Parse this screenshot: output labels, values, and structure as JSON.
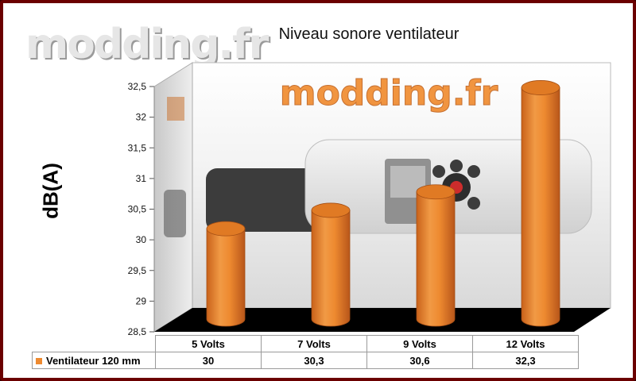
{
  "watermark": "modding.fr",
  "chart_data": {
    "type": "bar",
    "title": "Niveau sonore ventilateur",
    "ylabel": "dB(A)",
    "xlabel": "",
    "categories": [
      "5 Volts",
      "7 Volts",
      "9 Volts",
      "12 Volts"
    ],
    "series": [
      {
        "name": "Ventilateur 120 mm",
        "values": [
          30,
          30.3,
          30.6,
          32.3
        ]
      }
    ],
    "value_labels": [
      "30",
      "30,3",
      "30,6",
      "32,3"
    ],
    "ylim": [
      28.5,
      32.5
    ],
    "yticks": [
      28.5,
      29,
      29.5,
      30,
      30.5,
      31,
      31.5,
      32,
      32.5
    ],
    "ytick_labels": [
      "28,5",
      "29",
      "29,5",
      "30",
      "30,5",
      "31",
      "31,5",
      "32",
      "32,5"
    ],
    "bar_style": "3d-cylinder",
    "bar_color": "#ee8a30",
    "floor_color": "#000000",
    "grid": false,
    "legend": "data-table"
  }
}
